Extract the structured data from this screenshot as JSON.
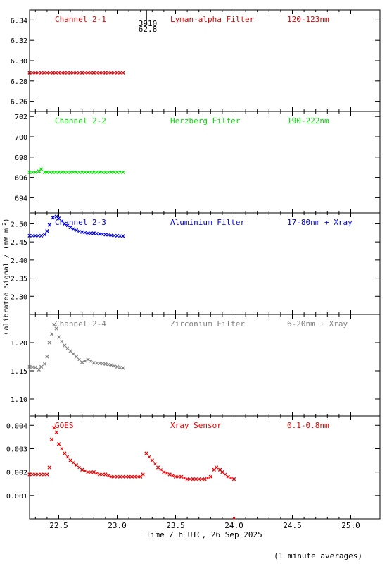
{
  "colors": {
    "background": "#ffffff",
    "axis": "#000000",
    "ch1": "#dd0000",
    "ch2": "#00dd00",
    "ch3": "#0000dd",
    "ch4": "#808080",
    "goes": "#ee0000"
  },
  "marker": {
    "value_1": "3910",
    "value_2": "62.8",
    "x": 23.25
  },
  "xaxis": {
    "label": "Time / h UTC, 26 Sep 2025",
    "range": [
      22.25,
      25.25
    ],
    "ticks": [
      22.5,
      23.0,
      23.5,
      24.0,
      24.5,
      25.0
    ],
    "tick_labels": [
      "22.5",
      "23.0",
      "23.5",
      "24.0",
      "24.5",
      "25.0"
    ]
  },
  "ylabel": "Calibrated Signal / (mW m",
  "ylabel_sup": "-2",
  "ylabel_close": ")",
  "footnote": "(1 minute averages)",
  "chart_data": [
    {
      "type": "scatter",
      "channel": "Channel 2-1",
      "filter": "Lyman-alpha Filter",
      "band": "120-123nm",
      "ylim": [
        6.25,
        6.35
      ],
      "yticks": [
        6.26,
        6.28,
        6.3,
        6.32,
        6.34
      ],
      "ytick_labels": [
        "6.26",
        "6.28",
        "6.30",
        "6.32",
        "6.34"
      ],
      "x": [
        22.25,
        22.3,
        22.35,
        22.4,
        22.45,
        22.5,
        22.55,
        22.6,
        22.65,
        22.7,
        22.75,
        22.8,
        22.85,
        22.9,
        22.95,
        23.0,
        23.05
      ],
      "y": [
        6.288,
        6.288,
        6.288,
        6.288,
        6.288,
        6.288,
        6.288,
        6.288,
        6.288,
        6.288,
        6.288,
        6.288,
        6.288,
        6.288,
        6.288,
        6.288,
        6.288
      ]
    },
    {
      "type": "scatter",
      "channel": "Channel 2-2",
      "filter": "Herzberg Filter",
      "band": "190-222nm",
      "ylim": [
        692.5,
        702.5
      ],
      "yticks": [
        694,
        696,
        698,
        700,
        702
      ],
      "ytick_labels": [
        "694",
        "696",
        "698",
        "700",
        "702"
      ],
      "x": [
        22.25,
        22.3,
        22.33,
        22.35,
        22.38,
        22.4,
        22.45,
        22.5,
        22.55,
        22.6,
        22.65,
        22.7,
        22.75,
        22.8,
        22.85,
        22.9,
        22.95,
        23.0,
        23.05
      ],
      "y": [
        696.5,
        696.5,
        696.6,
        696.8,
        696.5,
        696.5,
        696.5,
        696.5,
        696.5,
        696.5,
        696.5,
        696.5,
        696.5,
        696.5,
        696.5,
        696.5,
        696.5,
        696.5,
        696.5
      ]
    },
    {
      "type": "scatter",
      "channel": "Channel 2-3",
      "filter": "Aluminium Filter",
      "band": "17-80nm + Xray",
      "ylim": [
        2.25,
        2.53
      ],
      "yticks": [
        2.3,
        2.35,
        2.4,
        2.45,
        2.5
      ],
      "ytick_labels": [
        "2.30",
        "2.35",
        "2.40",
        "2.45",
        "2.50"
      ],
      "x": [
        22.25,
        22.3,
        22.35,
        22.38,
        22.4,
        22.42,
        22.45,
        22.48,
        22.5,
        22.55,
        22.6,
        22.65,
        22.7,
        22.75,
        22.8,
        22.85,
        22.9,
        22.95,
        23.0,
        23.05
      ],
      "y": [
        2.467,
        2.467,
        2.467,
        2.47,
        2.48,
        2.497,
        2.517,
        2.52,
        2.515,
        2.5,
        2.49,
        2.482,
        2.477,
        2.474,
        2.474,
        2.472,
        2.47,
        2.468,
        2.467,
        2.466
      ]
    },
    {
      "type": "scatter",
      "channel": "Channel 2-4",
      "filter": "Zirconium Filter",
      "band": "6-20nm + Xray",
      "ylim": [
        1.07,
        1.25
      ],
      "yticks": [
        1.1,
        1.15,
        1.2
      ],
      "ytick_labels": [
        "1.10",
        "1.15",
        "1.20"
      ],
      "x": [
        22.25,
        22.3,
        22.33,
        22.35,
        22.38,
        22.4,
        22.42,
        22.44,
        22.46,
        22.48,
        22.5,
        22.55,
        22.6,
        22.65,
        22.7,
        22.75,
        22.8,
        22.85,
        22.9,
        22.95,
        23.0,
        23.05
      ],
      "y": [
        1.157,
        1.156,
        1.152,
        1.157,
        1.162,
        1.175,
        1.2,
        1.215,
        1.232,
        1.225,
        1.21,
        1.195,
        1.185,
        1.175,
        1.165,
        1.17,
        1.164,
        1.163,
        1.162,
        1.16,
        1.157,
        1.155
      ]
    },
    {
      "type": "scatter",
      "channel": "GOES",
      "filter": "Xray Sensor",
      "band": "0.1-0.8nm",
      "ylim": [
        0.0,
        0.0044
      ],
      "yticks": [
        0.001,
        0.002,
        0.003,
        0.004
      ],
      "ytick_labels": [
        "0.001",
        "0.002",
        "0.003",
        "0.004"
      ],
      "x": [
        22.25,
        22.3,
        22.35,
        22.4,
        22.42,
        22.44,
        22.46,
        22.48,
        22.5,
        22.55,
        22.6,
        22.65,
        22.7,
        22.75,
        22.8,
        22.85,
        22.9,
        22.95,
        23.0,
        23.05,
        23.1,
        23.15,
        23.2,
        23.22,
        23.25,
        23.3,
        23.35,
        23.4,
        23.45,
        23.5,
        23.55,
        23.6,
        23.65,
        23.7,
        23.75,
        23.8,
        23.83,
        23.85,
        23.88,
        23.9,
        23.95,
        24.0
      ],
      "y": [
        0.0019,
        0.0019,
        0.0019,
        0.0019,
        0.0022,
        0.0034,
        0.0039,
        0.0037,
        0.0032,
        0.0028,
        0.0025,
        0.0023,
        0.0021,
        0.002,
        0.002,
        0.0019,
        0.0019,
        0.0018,
        0.0018,
        0.0018,
        0.0018,
        0.0018,
        0.0018,
        0.0019,
        0.0028,
        0.0025,
        0.0022,
        0.002,
        0.0019,
        0.0018,
        0.0018,
        0.0017,
        0.0017,
        0.0017,
        0.0017,
        0.0018,
        0.0021,
        0.0022,
        0.0021,
        0.002,
        0.0018,
        0.0017
      ]
    }
  ]
}
